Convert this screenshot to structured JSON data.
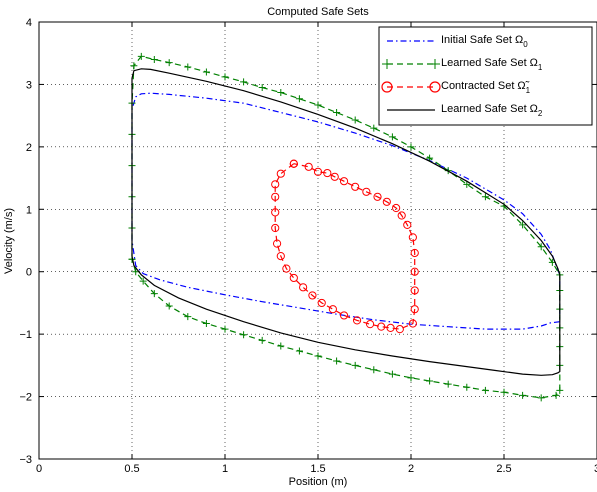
{
  "chart_data": {
    "type": "line",
    "title": "Computed Safe Sets",
    "xlabel": "Position (m)",
    "ylabel": "Velocity (m/s)",
    "xlim": [
      0,
      3
    ],
    "ylim": [
      -3,
      4
    ],
    "xticks": [
      "0",
      "0.5",
      "1",
      "1.5",
      "2",
      "2.5",
      "3"
    ],
    "yticks": [
      "−3",
      "−2",
      "−1",
      "0",
      "1",
      "2",
      "3",
      "4"
    ],
    "grid": true,
    "legend_position": "top-right",
    "series": [
      {
        "name": "Initial Safe Set Ω0",
        "legend_text": "Initial Safe Set Ω",
        "legend_sub": "0",
        "color": "#0000ff",
        "style": "dashdot",
        "marker": "none",
        "x": [
          0.5,
          0.5,
          0.5,
          0.52,
          0.55,
          0.6,
          0.7,
          0.9,
          1.1,
          1.3,
          1.5,
          1.7,
          1.9,
          2.1,
          2.3,
          2.5,
          2.6,
          2.7,
          2.75,
          2.78,
          2.8,
          2.8,
          2.75,
          2.7,
          2.6,
          2.4,
          2.2,
          2.0,
          1.8,
          1.6,
          1.4,
          1.2,
          1.0,
          0.8,
          0.65,
          0.56,
          0.52,
          0.5
        ],
        "y": [
          0.5,
          1.5,
          2.6,
          2.8,
          2.85,
          2.86,
          2.84,
          2.78,
          2.7,
          2.55,
          2.4,
          2.22,
          2.02,
          1.78,
          1.5,
          1.15,
          0.93,
          0.6,
          0.35,
          0.1,
          -0.05,
          -0.8,
          -0.82,
          -0.87,
          -0.92,
          -0.92,
          -0.88,
          -0.84,
          -0.77,
          -0.68,
          -0.58,
          -0.48,
          -0.37,
          -0.25,
          -0.13,
          -0.03,
          0.1,
          0.5
        ]
      },
      {
        "name": "Learned Safe Set Ω1",
        "legend_text": "Learned Safe Set Ω",
        "legend_sub": "1",
        "color": "#008000",
        "style": "dashed",
        "marker": "plus",
        "x": [
          0.5,
          0.5,
          0.5,
          0.5,
          0.5,
          0.5,
          0.51,
          0.55,
          0.62,
          0.7,
          0.8,
          0.9,
          1.0,
          1.1,
          1.2,
          1.3,
          1.4,
          1.5,
          1.6,
          1.7,
          1.8,
          1.9,
          2.0,
          2.1,
          2.2,
          2.3,
          2.4,
          2.5,
          2.6,
          2.7,
          2.76,
          2.8,
          2.8,
          2.8,
          2.8,
          2.8,
          2.8,
          2.8,
          2.78,
          2.7,
          2.6,
          2.5,
          2.4,
          2.3,
          2.2,
          2.1,
          2.0,
          1.9,
          1.8,
          1.7,
          1.6,
          1.5,
          1.4,
          1.3,
          1.2,
          1.1,
          1.0,
          0.9,
          0.8,
          0.7,
          0.62,
          0.56,
          0.52,
          0.5
        ],
        "y": [
          0.2,
          0.7,
          1.2,
          1.7,
          2.2,
          2.7,
          3.3,
          3.45,
          3.4,
          3.35,
          3.28,
          3.2,
          3.12,
          3.04,
          2.95,
          2.87,
          2.77,
          2.67,
          2.55,
          2.43,
          2.3,
          2.16,
          2.0,
          1.82,
          1.62,
          1.4,
          1.2,
          1.05,
          0.75,
          0.4,
          0.15,
          -0.05,
          -0.3,
          -0.6,
          -0.9,
          -1.2,
          -1.5,
          -1.9,
          -1.98,
          -2.02,
          -1.98,
          -1.93,
          -1.9,
          -1.85,
          -1.8,
          -1.75,
          -1.7,
          -1.64,
          -1.57,
          -1.5,
          -1.43,
          -1.35,
          -1.27,
          -1.19,
          -1.1,
          -1.01,
          -0.92,
          -0.83,
          -0.72,
          -0.55,
          -0.35,
          -0.15,
          0.0,
          0.2
        ]
      },
      {
        "name": "Contracted Set Ω~1",
        "legend_text": "Contracted Set Ω̃",
        "legend_sub": "1",
        "color": "#ff0000",
        "style": "dashed",
        "marker": "circle",
        "x": [
          1.37,
          1.3,
          1.27,
          1.27,
          1.27,
          1.27,
          1.28,
          1.3,
          1.33,
          1.37,
          1.42,
          1.47,
          1.52,
          1.58,
          1.64,
          1.71,
          1.78,
          1.84,
          1.89,
          1.94,
          2.01,
          2.02,
          2.02,
          2.02,
          2.02,
          2.01,
          1.98,
          1.95,
          1.92,
          1.87,
          1.82,
          1.76,
          1.7,
          1.64,
          1.59,
          1.55,
          1.5,
          1.45,
          1.37
        ],
        "y": [
          1.73,
          1.57,
          1.4,
          1.2,
          0.95,
          0.7,
          0.45,
          0.25,
          0.05,
          -0.1,
          -0.25,
          -0.38,
          -0.5,
          -0.6,
          -0.7,
          -0.78,
          -0.84,
          -0.88,
          -0.9,
          -0.92,
          -0.83,
          -0.6,
          -0.3,
          0.0,
          0.3,
          0.55,
          0.75,
          0.9,
          1.02,
          1.12,
          1.2,
          1.28,
          1.36,
          1.45,
          1.52,
          1.58,
          1.6,
          1.68,
          1.73
        ]
      },
      {
        "name": "Learned Safe Set Ω2",
        "legend_text": "Learned Safe Set Ω",
        "legend_sub": "2",
        "color": "#000000",
        "style": "solid",
        "marker": "none",
        "x": [
          0.5,
          0.5,
          0.5,
          0.5,
          0.51,
          0.55,
          0.6,
          0.7,
          0.9,
          1.1,
          1.3,
          1.5,
          1.7,
          1.9,
          2.1,
          2.3,
          2.5,
          2.6,
          2.7,
          2.76,
          2.79,
          2.8,
          2.8,
          2.79,
          2.76,
          2.7,
          2.6,
          2.45,
          2.3,
          2.1,
          1.9,
          1.7,
          1.5,
          1.3,
          1.1,
          0.9,
          0.75,
          0.62,
          0.55,
          0.51,
          0.5
        ],
        "y": [
          0.25,
          1.2,
          2.2,
          3.1,
          3.22,
          3.25,
          3.24,
          3.18,
          3.05,
          2.9,
          2.72,
          2.52,
          2.3,
          2.05,
          1.77,
          1.45,
          1.08,
          0.82,
          0.5,
          0.25,
          0.05,
          -0.05,
          -1.6,
          -1.62,
          -1.65,
          -1.66,
          -1.64,
          -1.58,
          -1.52,
          -1.44,
          -1.35,
          -1.25,
          -1.13,
          -0.98,
          -0.8,
          -0.6,
          -0.42,
          -0.22,
          -0.05,
          0.1,
          0.25
        ]
      }
    ]
  }
}
